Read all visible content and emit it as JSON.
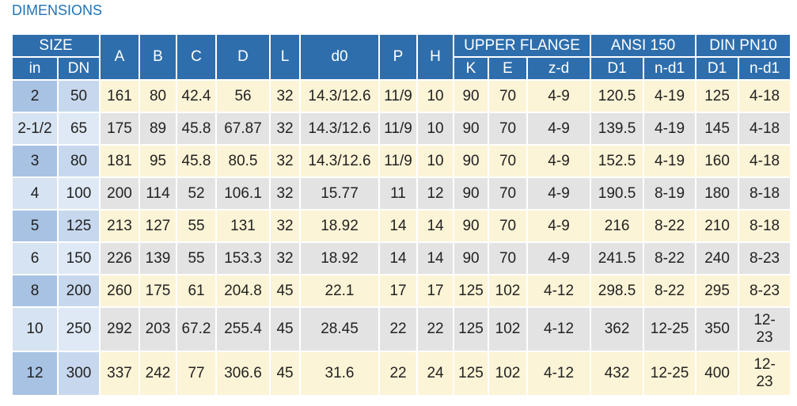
{
  "title": "DIMENSIONS",
  "table": {
    "header_top": [
      "SIZE",
      "A",
      "B",
      "C",
      "D",
      "L",
      "d0",
      "P",
      "H",
      "UPPER FLANGE",
      "ANSI 150",
      "DIN PN10"
    ],
    "header_sub": [
      "in",
      "DN",
      "K",
      "E",
      "z-d",
      "D1",
      "n-d1",
      "D1",
      "n-d1"
    ],
    "rows": [
      [
        "2",
        "50",
        "161",
        "80",
        "42.4",
        "56",
        "32",
        "14.3/12.6",
        "11/9",
        "10",
        "90",
        "70",
        "4-9",
        "120.5",
        "4-19",
        "125",
        "4-18"
      ],
      [
        "2-1/2",
        "65",
        "175",
        "89",
        "45.8",
        "67.87",
        "32",
        "14.3/12.6",
        "11/9",
        "10",
        "90",
        "70",
        "4-9",
        "139.5",
        "4-19",
        "145",
        "4-18"
      ],
      [
        "3",
        "80",
        "181",
        "95",
        "45.8",
        "80.5",
        "32",
        "14.3/12.6",
        "11/9",
        "10",
        "90",
        "70",
        "4-9",
        "152.5",
        "4-19",
        "160",
        "4-18"
      ],
      [
        "4",
        "100",
        "200",
        "114",
        "52",
        "106.1",
        "32",
        "15.77",
        "11",
        "12",
        "90",
        "70",
        "4-9",
        "190.5",
        "8-19",
        "180",
        "8-18"
      ],
      [
        "5",
        "125",
        "213",
        "127",
        "55",
        "131",
        "32",
        "18.92",
        "14",
        "14",
        "90",
        "70",
        "4-9",
        "216",
        "8-22",
        "210",
        "8-18"
      ],
      [
        "6",
        "150",
        "226",
        "139",
        "55",
        "153.3",
        "32",
        "18.92",
        "14",
        "14",
        "90",
        "70",
        "4-9",
        "241.5",
        "8-22",
        "240",
        "8-23"
      ],
      [
        "8",
        "200",
        "260",
        "175",
        "61",
        "204.8",
        "45",
        "22.1",
        "17",
        "17",
        "125",
        "102",
        "4-12",
        "298.5",
        "8-22",
        "295",
        "8-23"
      ],
      [
        "10",
        "250",
        "292",
        "203",
        "67.2",
        "255.4",
        "45",
        "28.45",
        "22",
        "22",
        "125",
        "102",
        "4-12",
        "362",
        "12-25",
        "350",
        "12-23"
      ],
      [
        "12",
        "300",
        "337",
        "242",
        "77",
        "306.6",
        "45",
        "31.6",
        "22",
        "24",
        "125",
        "102",
        "4-12",
        "432",
        "12-25",
        "400",
        "12-23"
      ]
    ]
  }
}
